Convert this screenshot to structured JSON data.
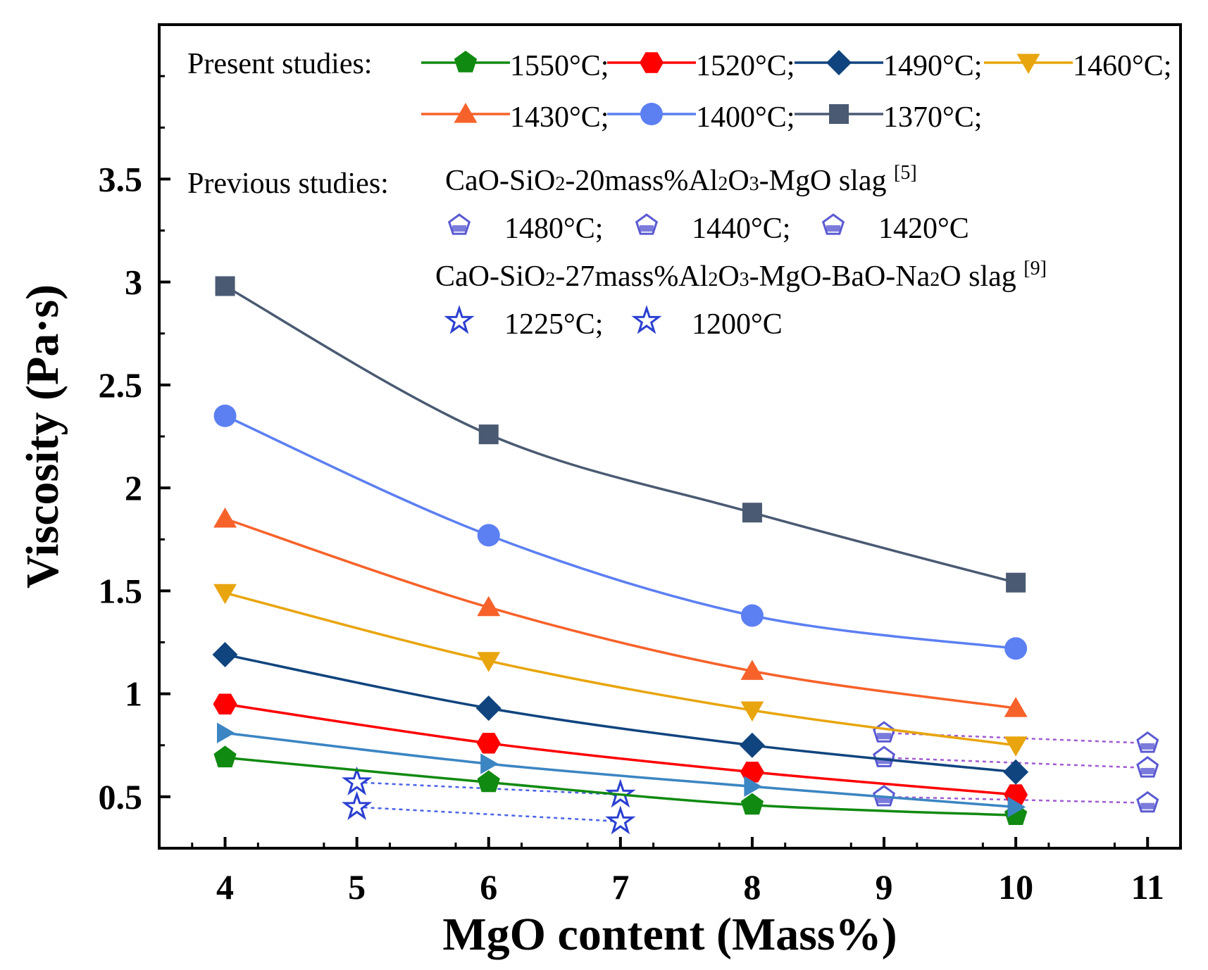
{
  "chart_data": {
    "type": "line",
    "xlabel": "MgO content (Mass%)",
    "ylabel": "Viscosity (Pa·s)",
    "xlim": [
      3.5,
      11.25
    ],
    "ylim": [
      0.25,
      4.25
    ],
    "xticks": [
      4,
      5,
      6,
      7,
      8,
      9,
      10,
      11
    ],
    "xtick_labels": [
      "4",
      "5",
      "6",
      "7",
      "8",
      "9",
      "10",
      "11"
    ],
    "yticks": [
      0.5,
      1,
      1.5,
      2,
      2.5,
      3,
      3.5
    ],
    "ytick_labels": [
      "0.5",
      "1",
      "1.5",
      "2",
      "2.5",
      "3",
      "3.5"
    ],
    "present_label": "Present studies:",
    "previous_label": "Previous studies:",
    "ref5_title": "CaO-SiO2-20mass%Al2O3-MgO slag [5]",
    "ref9_title": "CaO-SiO2-27mass%Al2O3-MgO-BaO-Na2O slag [9]",
    "ref5_parts": {
      "a": "CaO-SiO",
      "b": "2",
      "c": "-20mass%Al",
      "d": "2",
      "e": "O",
      "f": "3",
      "g": "-MgO slag ",
      "h": "[5]"
    },
    "ref9_parts": {
      "a": "CaO-SiO",
      "b": "2",
      "c": "-27mass%Al",
      "d": "2",
      "e": "O",
      "f": "3",
      "g": "-MgO-BaO-Na",
      "h": "2",
      "i": "O slag ",
      "j": "[9]"
    },
    "series": [
      {
        "name": "1550°C",
        "legend": "1550°C;",
        "color": "#118a11",
        "marker": "pentagon",
        "x": [
          4,
          6,
          8,
          10
        ],
        "y": [
          0.69,
          0.57,
          0.46,
          0.41
        ]
      },
      {
        "name": "1520°C",
        "legend": "1520°C;",
        "color": "#ff0000",
        "marker": "hexagon",
        "x": [
          4,
          6,
          8,
          10
        ],
        "y": [
          0.95,
          0.76,
          0.62,
          0.51
        ]
      },
      {
        "name": "1490°C",
        "legend": "1490°C;",
        "color": "#10447e",
        "marker": "diamond",
        "x": [
          4,
          6,
          8,
          10
        ],
        "y": [
          1.19,
          0.93,
          0.75,
          0.62
        ]
      },
      {
        "name": "1460°C",
        "legend": "1460°C;",
        "color": "#e8a50d",
        "marker": "triangle-down",
        "x": [
          4,
          6,
          8,
          10
        ],
        "y": [
          1.49,
          1.16,
          0.92,
          0.75
        ]
      },
      {
        "name": "1430°C",
        "legend": "1430°C;",
        "color": "#f7622a",
        "marker": "triangle-up",
        "x": [
          4,
          6,
          8,
          10
        ],
        "y": [
          1.85,
          1.42,
          1.11,
          0.93
        ]
      },
      {
        "name": "1400°C",
        "legend": "1400°C;",
        "color": "#5c7ff2",
        "marker": "circle",
        "x": [
          4,
          6,
          8,
          10
        ],
        "y": [
          2.35,
          1.77,
          1.38,
          1.22
        ]
      },
      {
        "name": "1370°C",
        "legend": "1370°C;",
        "color": "#4a5a72",
        "marker": "square",
        "x": [
          4,
          6,
          8,
          10
        ],
        "y": [
          2.98,
          2.26,
          1.88,
          1.54
        ]
      },
      {
        "name": "unlabeled",
        "legend": "",
        "color": "#3b85c2",
        "marker": "triangle-right",
        "x": [
          4,
          6,
          8,
          10
        ],
        "y": [
          0.81,
          0.66,
          0.55,
          0.45
        ]
      }
    ],
    "previous_series": [
      {
        "name": "1480°C",
        "legend": "1480°C;",
        "color": "#5a5ad2",
        "marker": "pent-open",
        "ref": "[5]",
        "x": [
          9,
          11
        ],
        "y": [
          0.5,
          0.47
        ]
      },
      {
        "name": "1440°C",
        "legend": "1440°C;",
        "color": "#5a5ad2",
        "marker": "pent-open",
        "ref": "[5]",
        "x": [
          9,
          11
        ],
        "y": [
          0.69,
          0.64
        ]
      },
      {
        "name": "1420°C",
        "legend": "1420°C",
        "color": "#5a5ad2",
        "marker": "pent-open",
        "ref": "[5]",
        "x": [
          9,
          11
        ],
        "y": [
          0.81,
          0.76
        ]
      },
      {
        "name": "1225°C",
        "legend": "1225°C;",
        "color": "#2a3fd0",
        "marker": "star",
        "ref": "[9]",
        "x": [
          5,
          7
        ],
        "y": [
          0.45,
          0.38
        ]
      },
      {
        "name": "1200°C",
        "legend": "1200°C",
        "color": "#2a3fd0",
        "marker": "star",
        "ref": "[9]",
        "x": [
          5,
          7
        ],
        "y": [
          0.57,
          0.51
        ]
      }
    ]
  }
}
